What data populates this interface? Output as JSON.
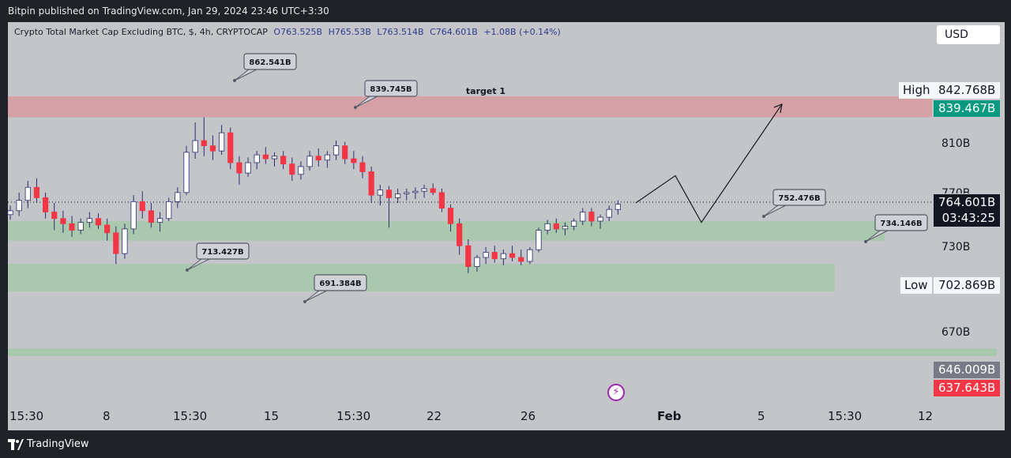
{
  "header": {
    "published_text": "Bitpin published on TradingView.com, Jan 29, 2024 23:46 UTC+3:30"
  },
  "legend": {
    "symbol": "Crypto Total Market Cap Excluding BTC, $, 4h, CRYPTOCAP",
    "open": "O763.525B",
    "high": "H765.53B",
    "low": "L763.514B",
    "close": "C764.601B",
    "change": "+1.08B (+0.14%)"
  },
  "currency": "USD",
  "footer": {
    "brand": "TradingView"
  },
  "colors": {
    "up": "#ffffff",
    "down": "#f23645",
    "wick": "#2a2e6e",
    "target_zone": "#d89aa0",
    "support_zone": "#a6c8a8",
    "current_tag": "#131722",
    "high_tag": "#089981",
    "low_tag": "#f23645",
    "grey_tag": "#787b86"
  },
  "icons": {
    "bolt": "lightning-bolt-icon",
    "logo": "tradingview-logo-icon"
  },
  "chart_data": {
    "type": "candlestick",
    "title": "Crypto Total Market Cap Excluding BTC, $, 4h, CRYPTOCAP",
    "ylim": [
      620,
      880
    ],
    "y_ticks": [
      "810B",
      "730B",
      "670B"
    ],
    "x_ticks": [
      "15:30",
      "8",
      "15:30",
      "15",
      "15:30",
      "22",
      "26",
      "Feb",
      "5",
      "15:30",
      "12"
    ],
    "price_tags": {
      "current": "764.601B",
      "countdown": "03:43:25",
      "high_label": "High",
      "high": "842.768B",
      "high_close": "839.467B",
      "low_label": "Low",
      "low": "702.869B",
      "grey": "646.009B",
      "red": "637.643B",
      "partial": "770B"
    },
    "zones": [
      {
        "name": "target 1",
        "low": 830,
        "high": 846
      },
      {
        "name": "",
        "low": 735,
        "high": 750
      },
      {
        "name": "",
        "low": 696,
        "high": 717
      },
      {
        "name": "",
        "low": 646,
        "high": 652
      }
    ],
    "callouts": [
      "862.541B",
      "839.745B",
      "713.427B",
      "691.384B",
      "752.476B",
      "734.146B"
    ],
    "projection_path": [
      764,
      785,
      749,
      840
    ],
    "candles": [
      [
        755,
        762,
        751,
        758
      ],
      [
        758,
        772,
        754,
        766
      ],
      [
        766,
        781,
        760,
        776
      ],
      [
        776,
        783,
        764,
        768
      ],
      [
        768,
        772,
        752,
        757
      ],
      [
        757,
        764,
        743,
        752
      ],
      [
        752,
        758,
        741,
        748
      ],
      [
        748,
        754,
        738,
        743
      ],
      [
        743,
        752,
        740,
        749
      ],
      [
        749,
        757,
        745,
        752
      ],
      [
        752,
        756,
        744,
        747
      ],
      [
        747,
        752,
        735,
        741
      ],
      [
        741,
        746,
        717,
        725
      ],
      [
        725,
        748,
        721,
        744
      ],
      [
        744,
        770,
        740,
        765
      ],
      [
        765,
        773,
        752,
        758
      ],
      [
        758,
        764,
        745,
        749
      ],
      [
        749,
        757,
        742,
        752
      ],
      [
        752,
        768,
        750,
        765
      ],
      [
        765,
        776,
        760,
        772
      ],
      [
        772,
        808,
        770,
        803
      ],
      [
        803,
        826,
        798,
        812
      ],
      [
        812,
        830,
        800,
        808
      ],
      [
        808,
        816,
        797,
        804
      ],
      [
        804,
        824,
        801,
        818
      ],
      [
        818,
        822,
        790,
        795
      ],
      [
        795,
        800,
        778,
        787
      ],
      [
        787,
        799,
        784,
        795
      ],
      [
        795,
        804,
        790,
        801
      ],
      [
        801,
        807,
        794,
        798
      ],
      [
        798,
        803,
        792,
        800
      ],
      [
        800,
        804,
        790,
        794
      ],
      [
        794,
        799,
        781,
        786
      ],
      [
        786,
        796,
        782,
        792
      ],
      [
        792,
        804,
        789,
        800
      ],
      [
        800,
        806,
        792,
        797
      ],
      [
        797,
        804,
        791,
        801
      ],
      [
        801,
        812,
        797,
        808
      ],
      [
        808,
        811,
        794,
        798
      ],
      [
        798,
        804,
        790,
        795
      ],
      [
        795,
        800,
        783,
        788
      ],
      [
        788,
        792,
        764,
        770
      ],
      [
        770,
        778,
        762,
        774
      ],
      [
        774,
        777,
        745,
        768
      ],
      [
        768,
        775,
        764,
        771
      ],
      [
        771,
        775,
        766,
        772
      ],
      [
        772,
        776,
        767,
        773
      ],
      [
        773,
        778,
        768,
        775
      ],
      [
        775,
        779,
        770,
        772
      ],
      [
        772,
        775,
        757,
        760
      ],
      [
        760,
        763,
        742,
        748
      ],
      [
        748,
        752,
        724,
        731
      ],
      [
        731,
        736,
        710,
        715
      ],
      [
        715,
        724,
        711,
        722
      ],
      [
        722,
        730,
        717,
        726
      ],
      [
        726,
        731,
        718,
        721
      ],
      [
        721,
        728,
        716,
        725
      ],
      [
        725,
        731,
        719,
        722
      ],
      [
        722,
        728,
        716,
        719
      ],
      [
        719,
        730,
        717,
        728
      ],
      [
        728,
        745,
        726,
        743
      ],
      [
        743,
        751,
        740,
        748
      ],
      [
        748,
        752,
        741,
        744
      ],
      [
        744,
        749,
        739,
        746
      ],
      [
        746,
        752,
        743,
        750
      ],
      [
        750,
        760,
        747,
        757
      ],
      [
        757,
        760,
        746,
        750
      ],
      [
        750,
        755,
        744,
        753
      ],
      [
        753,
        762,
        750,
        759
      ],
      [
        759,
        766,
        755,
        763
      ]
    ]
  }
}
